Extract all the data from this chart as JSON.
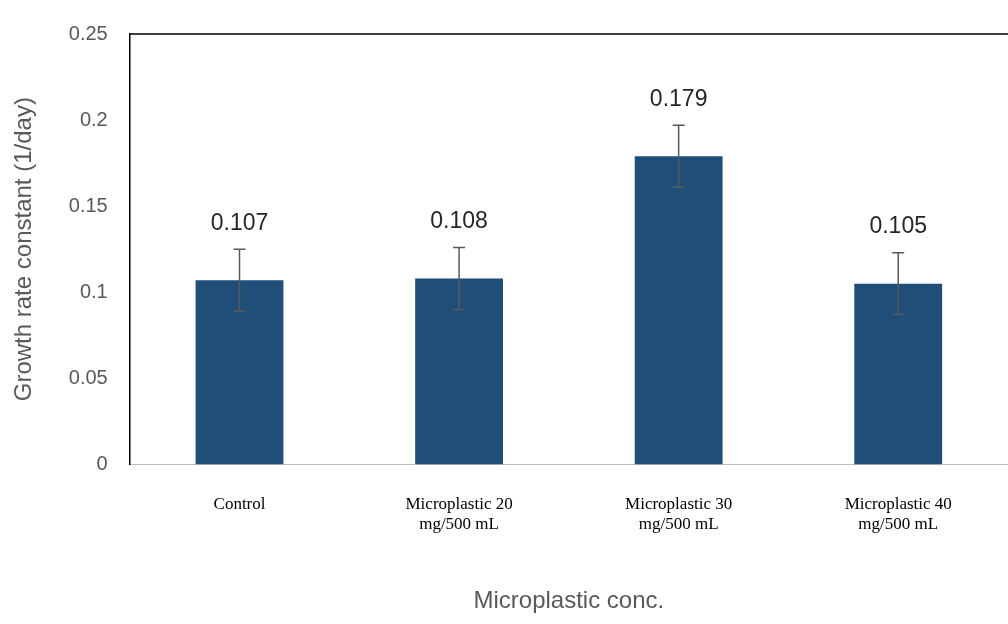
{
  "chart_data": {
    "type": "bar",
    "xlabel": "Microplastic conc.",
    "ylabel": "Growth rate constant (1/day)",
    "categories": [
      "Control",
      "Microplastic 20 mg/500 mL",
      "Microplastic 30 mg/500 mL",
      "Microplastic 40 mg/500 mL"
    ],
    "values": [
      0.107,
      0.108,
      0.179,
      0.105
    ],
    "errors": [
      0.018,
      0.018,
      0.018,
      0.018
    ],
    "color": "#1f4e79",
    "ylim": [
      0,
      0.25
    ],
    "yticks": [
      0,
      0.05,
      0.1,
      0.15,
      0.2,
      0.25
    ],
    "grid": false,
    "legend": false,
    "data_labels": true
  }
}
